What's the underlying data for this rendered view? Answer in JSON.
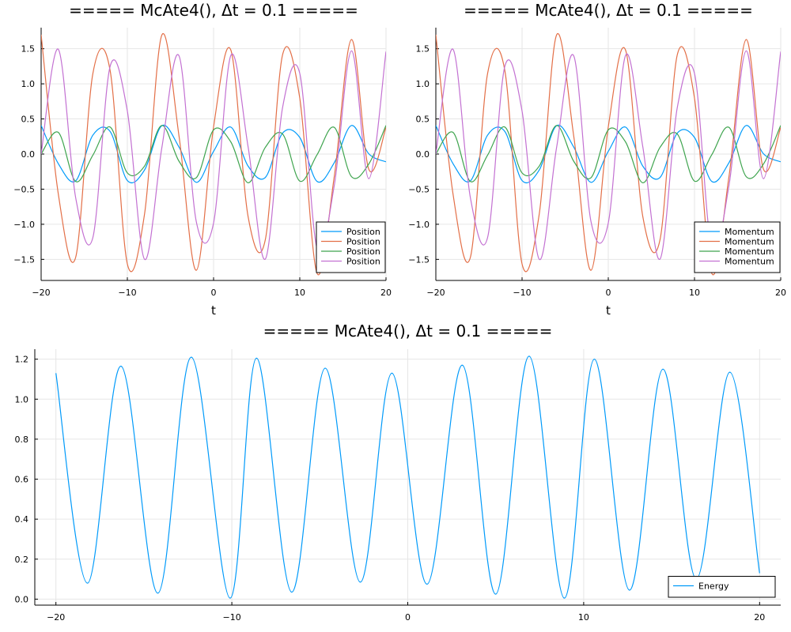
{
  "chart_data": [
    {
      "type": "line",
      "title": "===== McAte4(), Δt = 0.1 =====",
      "xlabel": "t",
      "ylabel": "",
      "xlim": [
        -20,
        20
      ],
      "ylim": [
        -1.8,
        1.8
      ],
      "x_ticks": [
        -20,
        -10,
        0,
        10,
        20
      ],
      "x_tick_labels": [
        "−20",
        "−10",
        "0",
        "10",
        "20"
      ],
      "y_ticks": [
        -1.5,
        -1.0,
        -0.5,
        0.0,
        0.5,
        1.0,
        1.5
      ],
      "y_tick_labels": [
        "−1.5",
        "−1.0",
        "−0.5",
        "0.0",
        "0.5",
        "1.0",
        "1.5"
      ],
      "grid": true,
      "legend_position": "bottom-right",
      "series": [
        {
          "name": "Position",
          "color": "#009AFA",
          "x": [
            -20,
            -18,
            -16,
            -14,
            -12,
            -10,
            -8,
            -6,
            -4,
            -2,
            0,
            2,
            4,
            6,
            8,
            10,
            12,
            14,
            16,
            18,
            20
          ],
          "values": [
            0.408,
            -0.138,
            -0.383,
            0.269,
            0.322,
            -0.377,
            -0.226,
            0.404,
            0.098,
            -0.403,
            0.038,
            0.384,
            -0.171,
            -0.334,
            0.298,
            0.236,
            -0.39,
            -0.123,
            0.407,
            0.004,
            -0.111
          ]
        },
        {
          "name": "Position",
          "color": "#E36F47",
          "x": [
            -20,
            -18,
            -16,
            -14,
            -12,
            -10,
            -8,
            -6,
            -4,
            -2,
            0,
            2,
            4,
            6,
            8,
            10,
            12,
            14,
            16,
            18,
            20
          ],
          "values": [
            1.7,
            -0.575,
            -1.474,
            1.146,
            1.191,
            -1.565,
            -0.849,
            1.695,
            0.25,
            -1.655,
            0.387,
            1.482,
            -0.887,
            -1.221,
            1.412,
            0.795,
            -1.697,
            -0.319,
            1.631,
            -0.216,
            0.378
          ]
        },
        {
          "name": "Position",
          "color": "#3EA44E",
          "x": [
            -20,
            -18,
            -16,
            -14,
            -12,
            -10,
            -8,
            -6,
            -4,
            -2,
            0,
            2,
            4,
            6,
            8,
            10,
            12,
            14,
            16,
            18,
            20
          ],
          "values": [
            0.0,
            0.308,
            -0.39,
            -0.016,
            0.385,
            -0.269,
            -0.171,
            0.407,
            -0.104,
            -0.337,
            0.344,
            0.173,
            -0.409,
            0.095,
            0.286,
            -0.385,
            -0.01,
            0.38,
            -0.322,
            -0.142,
            0.408
          ]
        },
        {
          "name": "Position",
          "color": "#C371D2",
          "x": [
            -20,
            -18,
            -16,
            -14,
            -12,
            -10,
            -8,
            -6,
            -4,
            -2,
            0,
            2,
            4,
            6,
            8,
            10,
            12,
            14,
            16,
            18,
            20
          ],
          "values": [
            0.0,
            1.491,
            -0.618,
            -1.19,
            1.248,
            0.612,
            -1.499,
            0.09,
            1.397,
            -0.965,
            -0.982,
            1.404,
            0.107,
            -1.496,
            0.66,
            1.147,
            -1.345,
            -0.448,
            1.47,
            -0.351,
            1.46
          ]
        }
      ]
    },
    {
      "type": "line",
      "title": "===== McAte4(), Δt = 0.1 =====",
      "xlabel": "t",
      "ylabel": "",
      "xlim": [
        -20,
        20
      ],
      "ylim": [
        -1.8,
        1.8
      ],
      "x_ticks": [
        -20,
        -10,
        0,
        10,
        20
      ],
      "x_tick_labels": [
        "−20",
        "−10",
        "0",
        "10",
        "20"
      ],
      "y_ticks": [
        -1.5,
        -1.0,
        -0.5,
        0.0,
        0.5,
        1.0,
        1.5
      ],
      "y_tick_labels": [
        "−1.5",
        "−1.0",
        "−0.5",
        "0.0",
        "0.5",
        "1.0",
        "1.5"
      ],
      "grid": true,
      "legend_position": "bottom-right",
      "series": [
        {
          "name": "Momentum",
          "color": "#009AFA",
          "x": [
            -20,
            -18,
            -16,
            -14,
            -12,
            -10,
            -8,
            -6,
            -4,
            -2,
            0,
            2,
            4,
            6,
            8,
            10,
            12,
            14,
            16,
            18,
            20
          ],
          "values": [
            0.408,
            -0.138,
            -0.383,
            0.269,
            0.322,
            -0.377,
            -0.226,
            0.404,
            0.098,
            -0.403,
            0.038,
            0.384,
            -0.171,
            -0.334,
            0.298,
            0.236,
            -0.39,
            -0.123,
            0.407,
            0.004,
            -0.111
          ]
        },
        {
          "name": "Momentum",
          "color": "#E36F47",
          "x": [
            -20,
            -18,
            -16,
            -14,
            -12,
            -10,
            -8,
            -6,
            -4,
            -2,
            0,
            2,
            4,
            6,
            8,
            10,
            12,
            14,
            16,
            18,
            20
          ],
          "values": [
            1.7,
            -0.575,
            -1.474,
            1.146,
            1.191,
            -1.565,
            -0.849,
            1.695,
            0.25,
            -1.655,
            0.387,
            1.482,
            -0.887,
            -1.221,
            1.412,
            0.795,
            -1.697,
            -0.319,
            1.631,
            -0.216,
            0.378
          ]
        },
        {
          "name": "Momentum",
          "color": "#3EA44E",
          "x": [
            -20,
            -18,
            -16,
            -14,
            -12,
            -10,
            -8,
            -6,
            -4,
            -2,
            0,
            2,
            4,
            6,
            8,
            10,
            12,
            14,
            16,
            18,
            20
          ],
          "values": [
            0.0,
            0.308,
            -0.39,
            -0.016,
            0.385,
            -0.269,
            -0.171,
            0.407,
            -0.104,
            -0.337,
            0.344,
            0.173,
            -0.409,
            0.095,
            0.286,
            -0.385,
            -0.01,
            0.38,
            -0.322,
            -0.142,
            0.408
          ]
        },
        {
          "name": "Momentum",
          "color": "#C371D2",
          "x": [
            -20,
            -18,
            -16,
            -14,
            -12,
            -10,
            -8,
            -6,
            -4,
            -2,
            0,
            2,
            4,
            6,
            8,
            10,
            12,
            14,
            16,
            18,
            20
          ],
          "values": [
            0.0,
            1.491,
            -0.618,
            -1.19,
            1.248,
            0.612,
            -1.499,
            0.09,
            1.397,
            -0.965,
            -0.982,
            1.404,
            0.107,
            -1.496,
            0.66,
            1.147,
            -1.345,
            -0.448,
            1.47,
            -0.351,
            1.46
          ]
        }
      ]
    },
    {
      "type": "line",
      "title": "===== McAte4(), Δt = 0.1 =====",
      "xlabel": "",
      "ylabel": "",
      "xlim": [
        -21.2,
        21.2
      ],
      "ylim": [
        -0.03,
        1.25
      ],
      "x_ticks": [
        -20,
        -10,
        0,
        10,
        20
      ],
      "x_tick_labels": [
        "−20",
        "−10",
        "0",
        "10",
        "20"
      ],
      "y_ticks": [
        0.0,
        0.2,
        0.4,
        0.6,
        0.8,
        1.0,
        1.2
      ],
      "y_tick_labels": [
        "0.0",
        "0.2",
        "0.4",
        "0.6",
        "0.8",
        "1.0",
        "1.2"
      ],
      "grid": true,
      "legend_position": "bottom-right",
      "series": [
        {
          "name": "Energy",
          "color": "#009AFA",
          "x": [
            -20.0,
            -18.2,
            -16.3,
            -14.2,
            -12.3,
            -10.1,
            -8.6,
            -6.6,
            -4.7,
            -2.7,
            -0.9,
            1.1,
            3.1,
            5.0,
            6.9,
            8.9,
            10.6,
            12.6,
            14.5,
            16.4,
            18.3,
            20.0
          ],
          "values": [
            1.13,
            0.08,
            1.165,
            0.03,
            1.21,
            0.005,
            1.205,
            0.035,
            1.155,
            0.085,
            1.13,
            0.075,
            1.17,
            0.025,
            1.215,
            0.005,
            1.2,
            0.045,
            1.15,
            0.1,
            1.135,
            0.13
          ]
        }
      ]
    }
  ]
}
